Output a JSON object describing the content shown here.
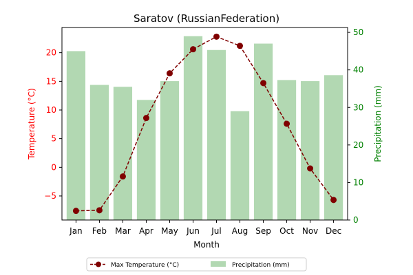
{
  "chart_data": {
    "type": "bar+line",
    "title": "Saratov (RussianFederation)",
    "xlabel": "Month",
    "ylabel_left": "Temperature (°C)",
    "ylabel_right": "Precipitation (mm)",
    "categories": [
      "Jan",
      "Feb",
      "Mar",
      "Apr",
      "May",
      "Jun",
      "Jul",
      "Aug",
      "Sep",
      "Oct",
      "Nov",
      "Dec"
    ],
    "series": [
      {
        "name": "Max Temperature (°C)",
        "kind": "line",
        "axis": "left",
        "color": "#800000",
        "values": [
          -7.6,
          -7.5,
          -1.6,
          8.6,
          16.4,
          20.6,
          22.8,
          21.2,
          14.7,
          7.6,
          -0.2,
          -5.7
        ]
      },
      {
        "name": "Precipitation (mm)",
        "kind": "bar",
        "axis": "right",
        "color": "#b2d8b2",
        "values": [
          45,
          36,
          35.5,
          32,
          37,
          49,
          45.3,
          29,
          47,
          37.3,
          37,
          38.6
        ]
      }
    ],
    "ylim_left": [
      -9.2,
      24.4
    ],
    "ylim_right": [
      0,
      51.3
    ],
    "yticks_left": [
      -5,
      0,
      5,
      10,
      15,
      20
    ],
    "yticks_right": [
      0,
      10,
      20,
      30,
      40,
      50
    ],
    "legend_position": "bottom-center",
    "grid": false,
    "colors": {
      "left_axis": "#ff0000",
      "right_axis": "#008000"
    }
  }
}
